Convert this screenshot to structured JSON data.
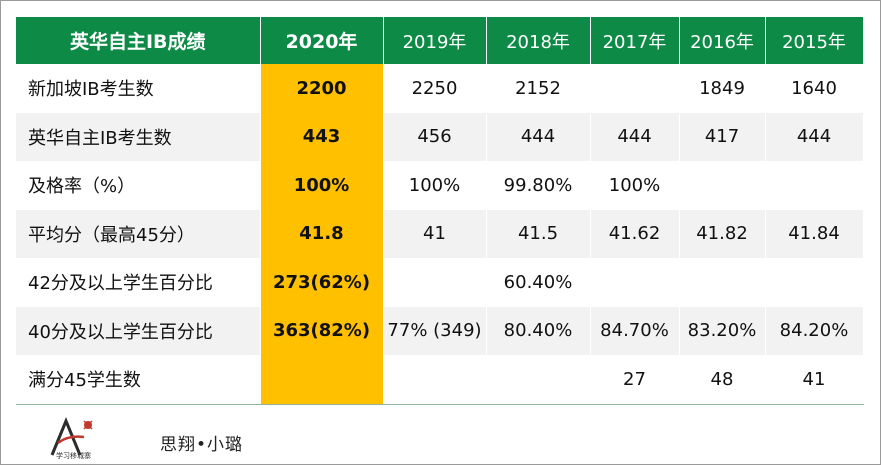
{
  "table": {
    "columns": [
      "英华自主IB成绩",
      "2020年",
      "2019年",
      "2018年",
      "2017年",
      "2016年",
      "2015年"
    ],
    "rows": [
      {
        "label": "新加坡IB考生数",
        "values": [
          "2200",
          "2250",
          "2152",
          "",
          "1849",
          "1640"
        ]
      },
      {
        "label": "英华自主IB考生数",
        "values": [
          "443",
          "456",
          "444",
          "444",
          "417",
          "444"
        ]
      },
      {
        "label": "及格率（%）",
        "values": [
          "100%",
          "100%",
          "99.80%",
          "100%",
          "",
          ""
        ]
      },
      {
        "label": "平均分（最高45分）",
        "values": [
          "41.8",
          "41",
          "41.5",
          "41.62",
          "41.82",
          "41.84"
        ]
      },
      {
        "label": "42分及以上学生百分比",
        "values": [
          "273(62%)",
          "",
          "60.40%",
          "",
          "",
          ""
        ]
      },
      {
        "label": "40分及以上学生百分比",
        "values": [
          "363(82%)",
          "77% (349)",
          "80.40%",
          "84.70%",
          "83.20%",
          "84.20%"
        ]
      },
      {
        "label": "满分45学生数",
        "values": [
          "",
          "",
          "",
          "27",
          "48",
          "41"
        ]
      }
    ]
  },
  "footer": {
    "logo_caption": "学习移城寨",
    "signature": "思翔•小璐"
  },
  "colors": {
    "header_green": "#0e8a47",
    "highlight_yellow": "#ffc000",
    "stripe_gray": "#f2f2f2"
  }
}
